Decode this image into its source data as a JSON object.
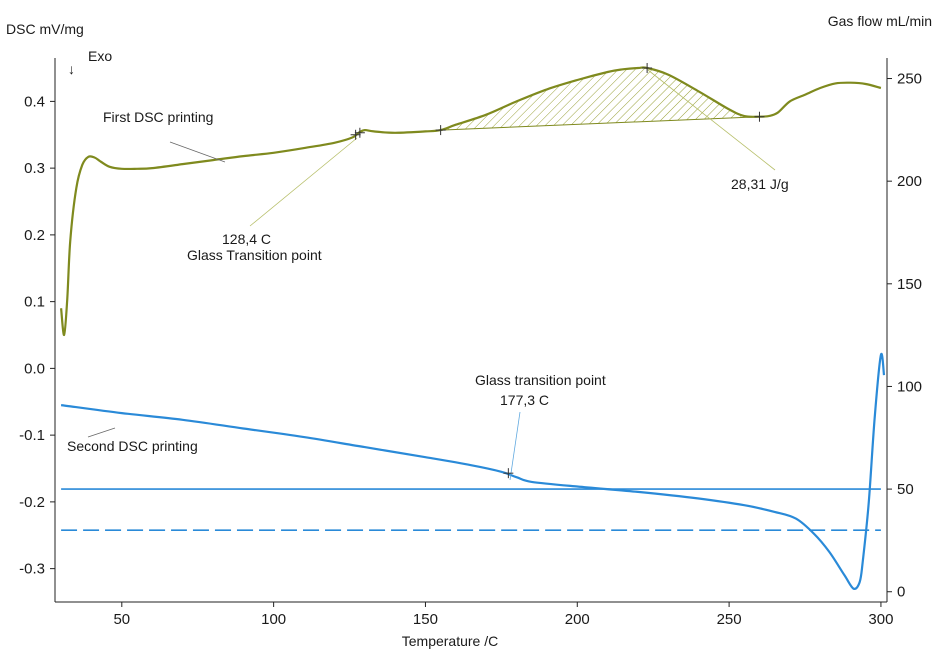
{
  "chart_data": {
    "type": "line",
    "xlabel": "Temperature /C",
    "ylabel_left": "DSC mV/mg",
    "ylabel_right": "Gas flow mL/min",
    "exo_label": "Exo",
    "xlim": [
      28,
      302
    ],
    "ylim_left": [
      -0.35,
      0.465
    ],
    "ylim_right": [
      -5,
      260
    ],
    "x_ticks": [
      50,
      100,
      150,
      200,
      250,
      300
    ],
    "y_ticks_left": [
      0.4,
      0.3,
      0.2,
      0.1,
      0.0,
      -0.1,
      -0.2,
      -0.3
    ],
    "y_ticks_left_labels": [
      "0.4",
      "0.3",
      "0.2",
      "0.1",
      "0.0",
      "-0.1",
      "-0.2",
      "-0.3"
    ],
    "y_ticks_right": [
      250,
      200,
      150,
      100,
      50,
      0
    ],
    "series": [
      {
        "name": "First DSC printing",
        "axis": "left",
        "color": "#7f8a1e",
        "x": [
          30,
          31,
          32,
          33,
          35,
          37,
          39,
          41,
          43,
          46,
          50,
          55,
          60,
          70,
          80,
          90,
          100,
          110,
          120,
          126,
          128,
          130,
          133,
          140,
          150,
          155,
          160,
          170,
          180,
          190,
          200,
          210,
          215,
          220,
          223,
          230,
          240,
          250,
          255,
          260,
          263,
          266,
          270,
          275,
          280,
          285,
          290,
          295,
          300
        ],
        "y": [
          0.09,
          0.05,
          0.1,
          0.19,
          0.27,
          0.305,
          0.317,
          0.316,
          0.31,
          0.302,
          0.299,
          0.299,
          0.3,
          0.306,
          0.312,
          0.318,
          0.323,
          0.33,
          0.338,
          0.346,
          0.353,
          0.357,
          0.355,
          0.353,
          0.355,
          0.357,
          0.365,
          0.38,
          0.4,
          0.418,
          0.432,
          0.444,
          0.448,
          0.45,
          0.45,
          0.44,
          0.415,
          0.388,
          0.378,
          0.377,
          0.378,
          0.383,
          0.4,
          0.41,
          0.42,
          0.427,
          0.428,
          0.426,
          0.42
        ]
      },
      {
        "name": "Second DSC printing",
        "axis": "left",
        "color": "#2a8ad8",
        "x": [
          30,
          50,
          70,
          90,
          110,
          130,
          150,
          165,
          175,
          180,
          185,
          200,
          220,
          240,
          255,
          265,
          272,
          278,
          283,
          288,
          291,
          293,
          294,
          296,
          298,
          300,
          301
        ],
        "y": [
          -0.055,
          -0.067,
          -0.077,
          -0.09,
          -0.103,
          -0.118,
          -0.133,
          -0.145,
          -0.155,
          -0.163,
          -0.17,
          -0.177,
          -0.185,
          -0.195,
          -0.205,
          -0.215,
          -0.225,
          -0.248,
          -0.275,
          -0.31,
          -0.33,
          -0.32,
          -0.29,
          -0.2,
          -0.07,
          0.02,
          -0.01
        ]
      },
      {
        "name": "",
        "axis": "right",
        "color": "#2a8ad8",
        "style": "solid",
        "x": [
          30,
          300
        ],
        "y": [
          50,
          50
        ]
      },
      {
        "name": "",
        "axis": "right",
        "color": "#2a8ad8",
        "style": "dashed",
        "x": [
          30,
          300
        ],
        "y": [
          30,
          30
        ]
      }
    ],
    "peak_area": {
      "series": "First DSC printing",
      "x_start": 155,
      "x_end": 260,
      "y_start": 0.357,
      "y_end": 0.377,
      "value_label": "28,31 J/g"
    },
    "annotations": [
      {
        "text": "First DSC printing",
        "x": 80,
        "y": 0.38
      },
      {
        "text": "128,4 C",
        "x": 128.4,
        "y": 0.2
      },
      {
        "text": "Glass Transition point",
        "x": 128.4,
        "y": 0.17
      },
      {
        "text": "28,31 J/g",
        "x": 262,
        "y": 0.28
      },
      {
        "text": "Glass transition point",
        "x": 177.3,
        "y": -0.01
      },
      {
        "text": "177,3 C",
        "x": 177.3,
        "y": -0.04
      },
      {
        "text": "Second DSC printing",
        "x": 60,
        "y": -0.12
      }
    ],
    "markers": [
      {
        "series": "First DSC printing",
        "x": 127,
        "y": 0.35
      },
      {
        "series": "First DSC printing",
        "x": 128.4,
        "y": 0.353
      },
      {
        "series": "First DSC printing",
        "x": 155,
        "y": 0.357
      },
      {
        "series": "First DSC printing",
        "x": 223,
        "y": 0.45
      },
      {
        "series": "First DSC printing",
        "x": 260,
        "y": 0.377
      },
      {
        "series": "Second DSC printing",
        "x": 177.3,
        "y": -0.157
      }
    ]
  }
}
